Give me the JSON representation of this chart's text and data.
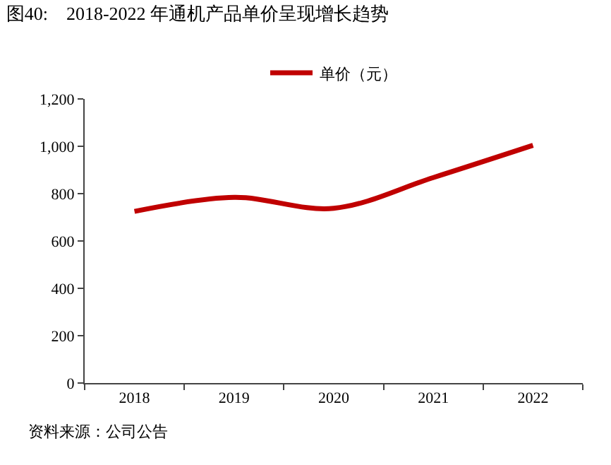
{
  "chart_data": {
    "type": "line",
    "title": "图40:    2018-2022 年通机产品单价呈现增长趋势",
    "categories": [
      "2018",
      "2019",
      "2020",
      "2021",
      "2022"
    ],
    "series": [
      {
        "name": "单价（元）",
        "color": "#c00000",
        "values": [
          725,
          784,
          738,
          868,
          1004
        ]
      }
    ],
    "ylim": [
      0,
      1200
    ],
    "yticks": [
      0,
      {
        "value": 200,
        "label": "200"
      },
      {
        "value": 400,
        "label": "400"
      },
      {
        "value": 600,
        "label": "600"
      },
      {
        "value": 800,
        "label": "800"
      },
      {
        "value": 1000,
        "label": "1,000"
      },
      {
        "value": 1200,
        "label": "1,200"
      }
    ],
    "grid": false,
    "legend": "top",
    "marker": "none",
    "line_style": "solid",
    "annotations": [
      "资料来源：公司公告"
    ]
  }
}
